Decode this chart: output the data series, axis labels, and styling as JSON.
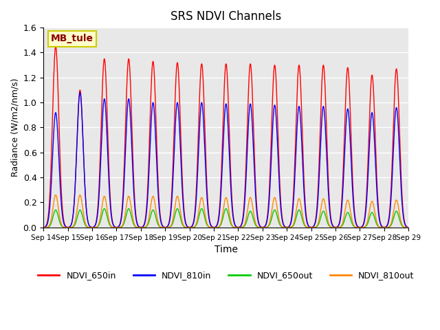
{
  "title": "SRS NDVI Channels",
  "xlabel": "Time",
  "ylabel": "Radiance (W/m2/nm/s)",
  "annotation": "MB_tule",
  "annotation_color": "#8B0000",
  "annotation_bg": "#FFFFCC",
  "annotation_border": "#CCCC00",
  "ylim": [
    0,
    1.6
  ],
  "yticks": [
    0.0,
    0.2,
    0.4,
    0.6,
    0.8,
    1.0,
    1.2,
    1.4,
    1.6
  ],
  "num_days": 15,
  "samples_per_day": 96,
  "colors": {
    "NDVI_650in": "#FF0000",
    "NDVI_810in": "#0000FF",
    "NDVI_650out": "#00CC00",
    "NDVI_810out": "#FF8800"
  },
  "peak_amplitudes_650in": [
    1.45,
    1.1,
    1.35,
    1.35,
    1.33,
    1.32,
    1.31,
    1.31,
    1.31,
    1.3,
    1.3,
    1.3,
    1.28,
    1.22,
    1.27
  ],
  "peak_amplitudes_810in": [
    0.92,
    1.08,
    1.03,
    1.03,
    1.0,
    1.0,
    1.0,
    0.99,
    0.99,
    0.98,
    0.97,
    0.97,
    0.95,
    0.92,
    0.96
  ],
  "peak_amplitudes_650out": [
    0.14,
    0.14,
    0.15,
    0.15,
    0.14,
    0.15,
    0.15,
    0.15,
    0.13,
    0.14,
    0.14,
    0.13,
    0.12,
    0.12,
    0.13
  ],
  "peak_amplitudes_810out": [
    0.26,
    0.26,
    0.25,
    0.25,
    0.25,
    0.25,
    0.24,
    0.24,
    0.24,
    0.24,
    0.23,
    0.23,
    0.22,
    0.21,
    0.22
  ],
  "bg_color": "#E8E8E8",
  "fig_bg": "#FFFFFF",
  "grid_color": "#FFFFFF",
  "xtick_labels": [
    "Sep 14",
    "Sep 15",
    "Sep 16",
    "Sep 17",
    "Sep 18",
    "Sep 19",
    "Sep 20",
    "Sep 21",
    "Sep 22",
    "Sep 23",
    "Sep 24",
    "Sep 25",
    "Sep 26",
    "Sep 27",
    "Sep 28",
    "Sep 29"
  ],
  "legend_labels": [
    "NDVI_650in",
    "NDVI_810in",
    "NDVI_650out",
    "NDVI_810out"
  ]
}
